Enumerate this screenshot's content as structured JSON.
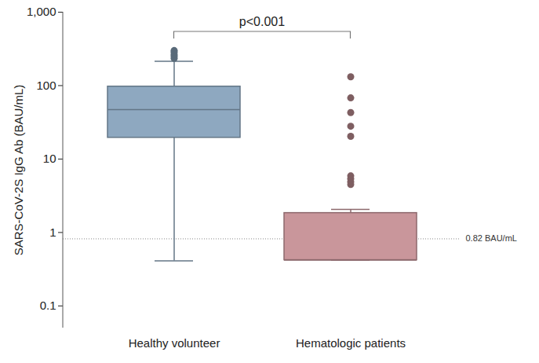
{
  "chart_data": {
    "type": "box",
    "y_label": "SARS-CoV-2S IgG Ab (BAU/mL)",
    "log": "y",
    "categories": [
      "Healthy volunteer",
      "Hematologic patients"
    ],
    "colors": [
      "#8ea8c0",
      "#c9969b"
    ],
    "boxes": [
      {
        "whisker_low": 0.41,
        "q1": 19.5,
        "median": 47,
        "q3": 97,
        "whisker_high": 215,
        "outliers": [
          235,
          250,
          265,
          285,
          300
        ]
      },
      {
        "whisker_low": 0.42,
        "q1": 0.42,
        "median": 0.42,
        "q3": 1.84,
        "whisker_high": 2.06,
        "outliers": [
          132,
          68,
          43,
          28,
          20.4,
          5.9,
          5.4,
          4.9,
          4.5
        ]
      }
    ],
    "reference_line": {
      "value": 0.82,
      "label": "0.82 BAU/mL"
    },
    "annotation": {
      "text": "p<0.001"
    },
    "ylim": [
      0.05,
      1000
    ],
    "yticks": [
      0.1,
      1,
      10,
      100,
      {
        "value": 1000,
        "label": "1,000"
      }
    ],
    "grid": false
  }
}
